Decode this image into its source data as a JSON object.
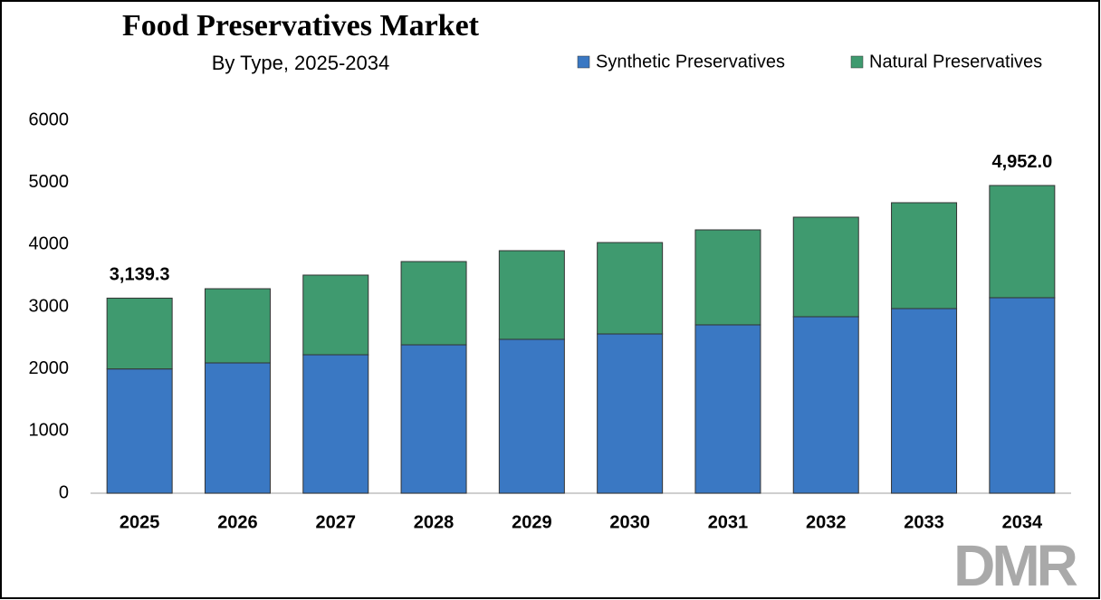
{
  "chart_data": {
    "type": "stacked_bar",
    "title": "Food Preservatives Market",
    "subtitle": "By Type, 2025-2034",
    "categories": [
      "2025",
      "2026",
      "2027",
      "2028",
      "2029",
      "2030",
      "2031",
      "2032",
      "2033",
      "2034"
    ],
    "series": [
      {
        "name": "Synthetic Preservatives",
        "color": "#3a78c3",
        "values": [
          2000,
          2097,
          2228,
          2388,
          2476,
          2563,
          2709,
          2840,
          2971,
          3146
        ]
      },
      {
        "name": "Natural Preservatives",
        "color": "#3f9a6f",
        "values": [
          1139.3,
          1194,
          1282,
          1340,
          1427,
          1471,
          1529,
          1602,
          1704,
          1806
        ]
      }
    ],
    "total_labels": [
      {
        "index": 0,
        "value": 3139.3,
        "label": "3,139.3"
      },
      {
        "index": 9,
        "value": 4952.0,
        "label": "4,952.0"
      }
    ],
    "ylim": [
      0,
      6000
    ],
    "yticks": [
      0,
      1000,
      2000,
      3000,
      4000,
      5000,
      6000
    ],
    "grid": false,
    "legend": "top-right",
    "watermark": "DMR"
  }
}
